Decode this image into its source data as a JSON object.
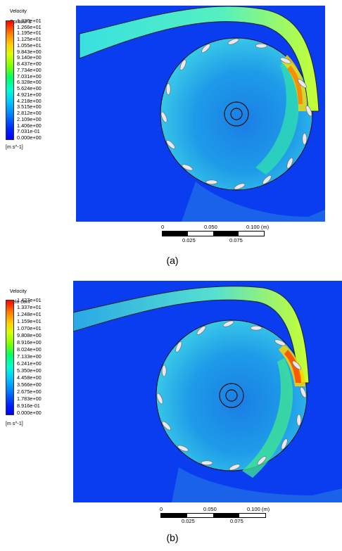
{
  "panels": [
    {
      "legend_title_1": "Velocity",
      "legend_title_2": "Contour 1",
      "ticks": [
        "1.336e+01",
        "1.266e+01",
        "1.195e+01",
        "1.125e+01",
        "1.055e+01",
        "9.843e+00",
        "9.140e+00",
        "8.437e+00",
        "7.734e+00",
        "7.031e+00",
        "6.328e+00",
        "5.624e+00",
        "4.921e+00",
        "4.218e+00",
        "3.515e+00",
        "2.812e+00",
        "2.109e+00",
        "1.406e+00",
        "7.031e-01",
        "0.000e+00"
      ],
      "unit": "[m s^-1]",
      "scale_top": [
        "0",
        "0.050",
        "0.100  (m)"
      ],
      "scale_bottom": [
        "0.025",
        "0.075"
      ],
      "caption": "(a)"
    },
    {
      "legend_title_1": "Velocity",
      "legend_title_2": "Velo cont",
      "ticks": [
        "1.427e+01",
        "1.337e+01",
        "1.248e+01",
        "1.159e+01",
        "1.070e+01",
        "9.808e+00",
        "8.916e+00",
        "8.024e+00",
        "7.133e+00",
        "6.241e+00",
        "5.350e+00",
        "4.458e+00",
        "3.566e+00",
        "2.675e+00",
        "1.783e+00",
        "8.916e-01",
        "0.000e+00"
      ],
      "unit": "[m s^-1]",
      "scale_top": [
        "0",
        "0.050",
        "0.100  (m)"
      ],
      "scale_bottom": [
        "0.025",
        "0.075"
      ],
      "caption": "(b)"
    }
  ]
}
